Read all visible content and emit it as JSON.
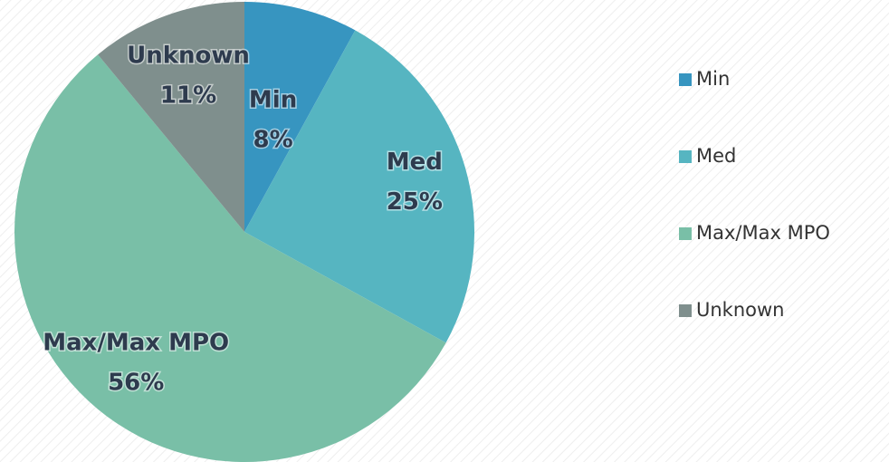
{
  "chart_data": {
    "type": "pie",
    "categories": [
      "Min",
      "Med",
      "Max/Max MPO",
      "Unknown"
    ],
    "values": [
      8,
      25,
      56,
      11
    ],
    "value_labels": [
      "8%",
      "25%",
      "56%",
      "11%"
    ],
    "colors": [
      "#3795c0",
      "#56b5c1",
      "#79bfa7",
      "#7f8f8d"
    ],
    "legend": "right"
  }
}
